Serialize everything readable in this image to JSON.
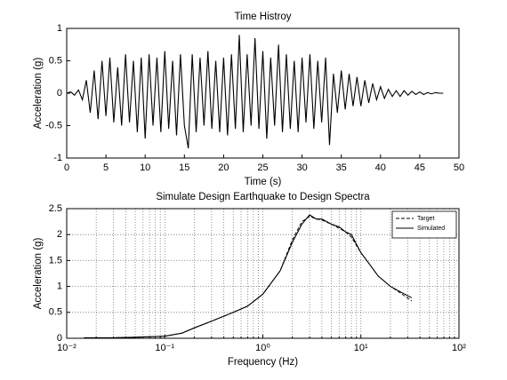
{
  "chart_data": [
    {
      "type": "line",
      "title": "Time Histroy",
      "x_label": "Time (s)",
      "y_label": "Acceleration (g)",
      "xlim": [
        0,
        50
      ],
      "ylim": [
        -1,
        1
      ],
      "xticks": [
        0,
        5,
        10,
        15,
        20,
        25,
        30,
        35,
        40,
        45,
        50
      ],
      "yticks": [
        -1,
        -0.5,
        0,
        0.5,
        1
      ],
      "color": "#000000",
      "grid": false,
      "x": [
        0,
        0.5,
        1,
        1.5,
        2,
        2.5,
        3,
        3.5,
        4,
        4.5,
        5,
        5.5,
        6,
        6.5,
        7,
        7.5,
        8,
        8.5,
        9,
        9.5,
        10,
        10.5,
        11,
        11.5,
        12,
        12.5,
        13,
        13.5,
        14,
        14.5,
        15,
        15.5,
        16,
        16.5,
        17,
        17.5,
        18,
        18.5,
        19,
        19.5,
        20,
        20.5,
        21,
        21.5,
        22,
        22.5,
        23,
        23.5,
        24,
        24.5,
        25,
        25.5,
        26,
        26.5,
        27,
        27.5,
        28,
        28.5,
        29,
        29.5,
        30,
        30.5,
        31,
        31.5,
        32,
        32.5,
        33,
        33.5,
        34,
        34.5,
        35,
        35.5,
        36,
        36.5,
        37,
        37.5,
        38,
        38.5,
        39,
        39.5,
        40,
        40.5,
        41,
        41.5,
        42,
        42.5,
        43,
        43.5,
        44,
        44.5,
        45,
        45.5,
        46,
        46.5,
        47,
        47.5,
        48
      ],
      "values": [
        0,
        0.02,
        -0.03,
        0.05,
        -0.1,
        0.2,
        -0.3,
        0.35,
        -0.4,
        0.5,
        -0.35,
        0.55,
        -0.45,
        0.4,
        -0.5,
        0.6,
        -0.45,
        0.5,
        -0.6,
        0.55,
        -0.7,
        0.6,
        -0.5,
        0.55,
        -0.6,
        0.65,
        -0.55,
        0.5,
        -0.65,
        0.6,
        -0.5,
        -0.85,
        0.6,
        -0.6,
        0.55,
        -0.5,
        0.65,
        -0.55,
        0.5,
        -0.6,
        0.55,
        -0.65,
        0.6,
        -0.55,
        0.9,
        -0.6,
        0.6,
        -0.5,
        0.85,
        -0.55,
        0.65,
        -0.7,
        0.55,
        -0.5,
        0.75,
        -0.6,
        0.6,
        -0.55,
        0.5,
        -0.6,
        0.55,
        -0.45,
        0.6,
        -0.55,
        0.5,
        -0.45,
        0.55,
        -0.8,
        0.3,
        -0.3,
        0.35,
        -0.25,
        0.3,
        -0.2,
        0.25,
        -0.2,
        0.2,
        -0.15,
        0.15,
        -0.1,
        0.1,
        -0.08,
        0.06,
        -0.05,
        0.04,
        -0.05,
        0.04,
        -0.03,
        0.03,
        -0.02,
        0.02,
        -0.02,
        0.01,
        -0.01,
        0.01,
        0,
        0
      ]
    },
    {
      "type": "line",
      "title": "Simulate Design Earthquake to Design Spectra",
      "x_label": "Frequency (Hz)",
      "y_label": "Acceleration (g)",
      "x_scale": "log",
      "xlim": [
        0.01,
        100
      ],
      "ylim": [
        0,
        2.5
      ],
      "xticks": [
        {
          "value": 0.01,
          "label": "10⁻²"
        },
        {
          "value": 0.1,
          "label": "10⁻¹"
        },
        {
          "value": 1,
          "label": "10⁰"
        },
        {
          "value": 10,
          "label": "10¹"
        },
        {
          "value": 100,
          "label": "10²"
        }
      ],
      "xminorticks": [
        0.02,
        0.03,
        0.04,
        0.05,
        0.06,
        0.07,
        0.08,
        0.09,
        0.2,
        0.3,
        0.4,
        0.5,
        0.6,
        0.7,
        0.8,
        0.9,
        2,
        3,
        4,
        5,
        6,
        7,
        8,
        9,
        20,
        30,
        40,
        50,
        60,
        70,
        80,
        90
      ],
      "yticks": [
        0,
        0.5,
        1,
        1.5,
        2,
        2.5
      ],
      "grid": true,
      "legend": "upper right",
      "x": [
        0.015,
        0.03,
        0.05,
        0.1,
        0.15,
        0.2,
        0.3,
        0.5,
        0.7,
        1,
        1.5,
        2,
        2.5,
        3,
        3.5,
        4,
        5,
        6,
        7,
        8,
        10,
        12,
        15,
        20,
        25,
        33
      ],
      "series": [
        {
          "name": "Target",
          "color": "#000000",
          "line_style": "dashed",
          "values": [
            0.01,
            0.01,
            0.02,
            0.04,
            0.1,
            0.2,
            0.33,
            0.5,
            0.62,
            0.85,
            1.3,
            1.9,
            2.25,
            2.35,
            2.3,
            2.28,
            2.2,
            2.12,
            2.05,
            1.95,
            1.65,
            1.45,
            1.2,
            1.0,
            0.88,
            0.72
          ]
        },
        {
          "name": "Simulated",
          "color": "#000000",
          "line_style": "solid",
          "values": [
            0.01,
            0.01,
            0.02,
            0.04,
            0.1,
            0.2,
            0.33,
            0.5,
            0.62,
            0.85,
            1.3,
            1.85,
            2.2,
            2.38,
            2.3,
            2.3,
            2.2,
            2.15,
            2.05,
            2.0,
            1.65,
            1.45,
            1.2,
            1.0,
            0.9,
            0.78
          ]
        }
      ]
    }
  ]
}
